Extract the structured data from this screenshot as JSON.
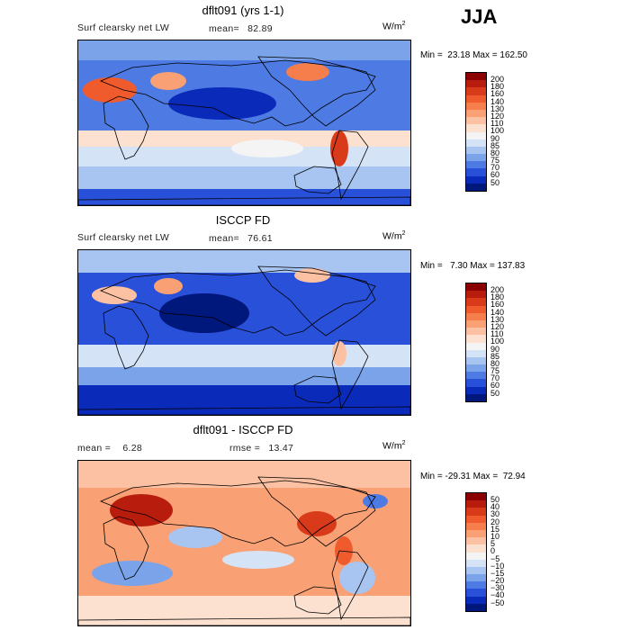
{
  "season": "JJA",
  "panels": [
    {
      "title": "dflt091 (yrs 1-1)",
      "left_label": "Surf clearsky net LW",
      "stat_label": "mean=",
      "stat_value": "82.89",
      "units_base": "W/m",
      "units_exp": "2",
      "minmax": "Min =  23.18 Max = 162.50",
      "colorbar": {
        "labels": [
          "200",
          "180",
          "160",
          "140",
          "130",
          "120",
          "110",
          "100",
          "90",
          "85",
          "80",
          "75",
          "70",
          "60",
          "50"
        ],
        "colors": [
          "#8b0000",
          "#b81c0c",
          "#d93a1a",
          "#ef5b2d",
          "#f57e4c",
          "#f9a074",
          "#fcc1a3",
          "#fde1d0",
          "#f4f4f4",
          "#d5e3f7",
          "#a8c4f1",
          "#7ba3ea",
          "#4d7ae3",
          "#2950d9",
          "#0a2aba",
          "#00177c"
        ]
      },
      "map_style": "model"
    },
    {
      "title": "ISCCP FD",
      "left_label": "Surf clearsky net LW",
      "stat_label": "mean=",
      "stat_value": "76.61",
      "units_base": "W/m",
      "units_exp": "2",
      "minmax": "Min =   7.30 Max = 137.83",
      "colorbar": {
        "labels": [
          "200",
          "180",
          "160",
          "140",
          "130",
          "120",
          "110",
          "100",
          "90",
          "85",
          "80",
          "75",
          "70",
          "60",
          "50"
        ],
        "colors": [
          "#8b0000",
          "#b81c0c",
          "#d93a1a",
          "#ef5b2d",
          "#f57e4c",
          "#f9a074",
          "#fcc1a3",
          "#fde1d0",
          "#f4f4f4",
          "#d5e3f7",
          "#a8c4f1",
          "#7ba3ea",
          "#4d7ae3",
          "#2950d9",
          "#0a2aba",
          "#00177c"
        ]
      },
      "map_style": "obs"
    },
    {
      "title": "dflt091 - ISCCP FD",
      "left_label": "mean =",
      "left_value": "6.28",
      "stat_label": "rmse =",
      "stat_value": "13.47",
      "units_base": "W/m",
      "units_exp": "2",
      "minmax": "Min = -29.31 Max =  72.94",
      "colorbar": {
        "labels": [
          "50",
          "40",
          "30",
          "20",
          "15",
          "10",
          "5",
          "0",
          "−5",
          "−10",
          "−15",
          "−20",
          "−30",
          "−40",
          "−50"
        ],
        "colors": [
          "#8b0000",
          "#b81c0c",
          "#d93a1a",
          "#ef5b2d",
          "#f57e4c",
          "#f9a074",
          "#fcc1a3",
          "#fde1d0",
          "#f4f4f4",
          "#d5e3f7",
          "#a8c4f1",
          "#7ba3ea",
          "#4d7ae3",
          "#2950d9",
          "#0a2aba",
          "#00177c"
        ]
      },
      "map_style": "diff"
    }
  ]
}
